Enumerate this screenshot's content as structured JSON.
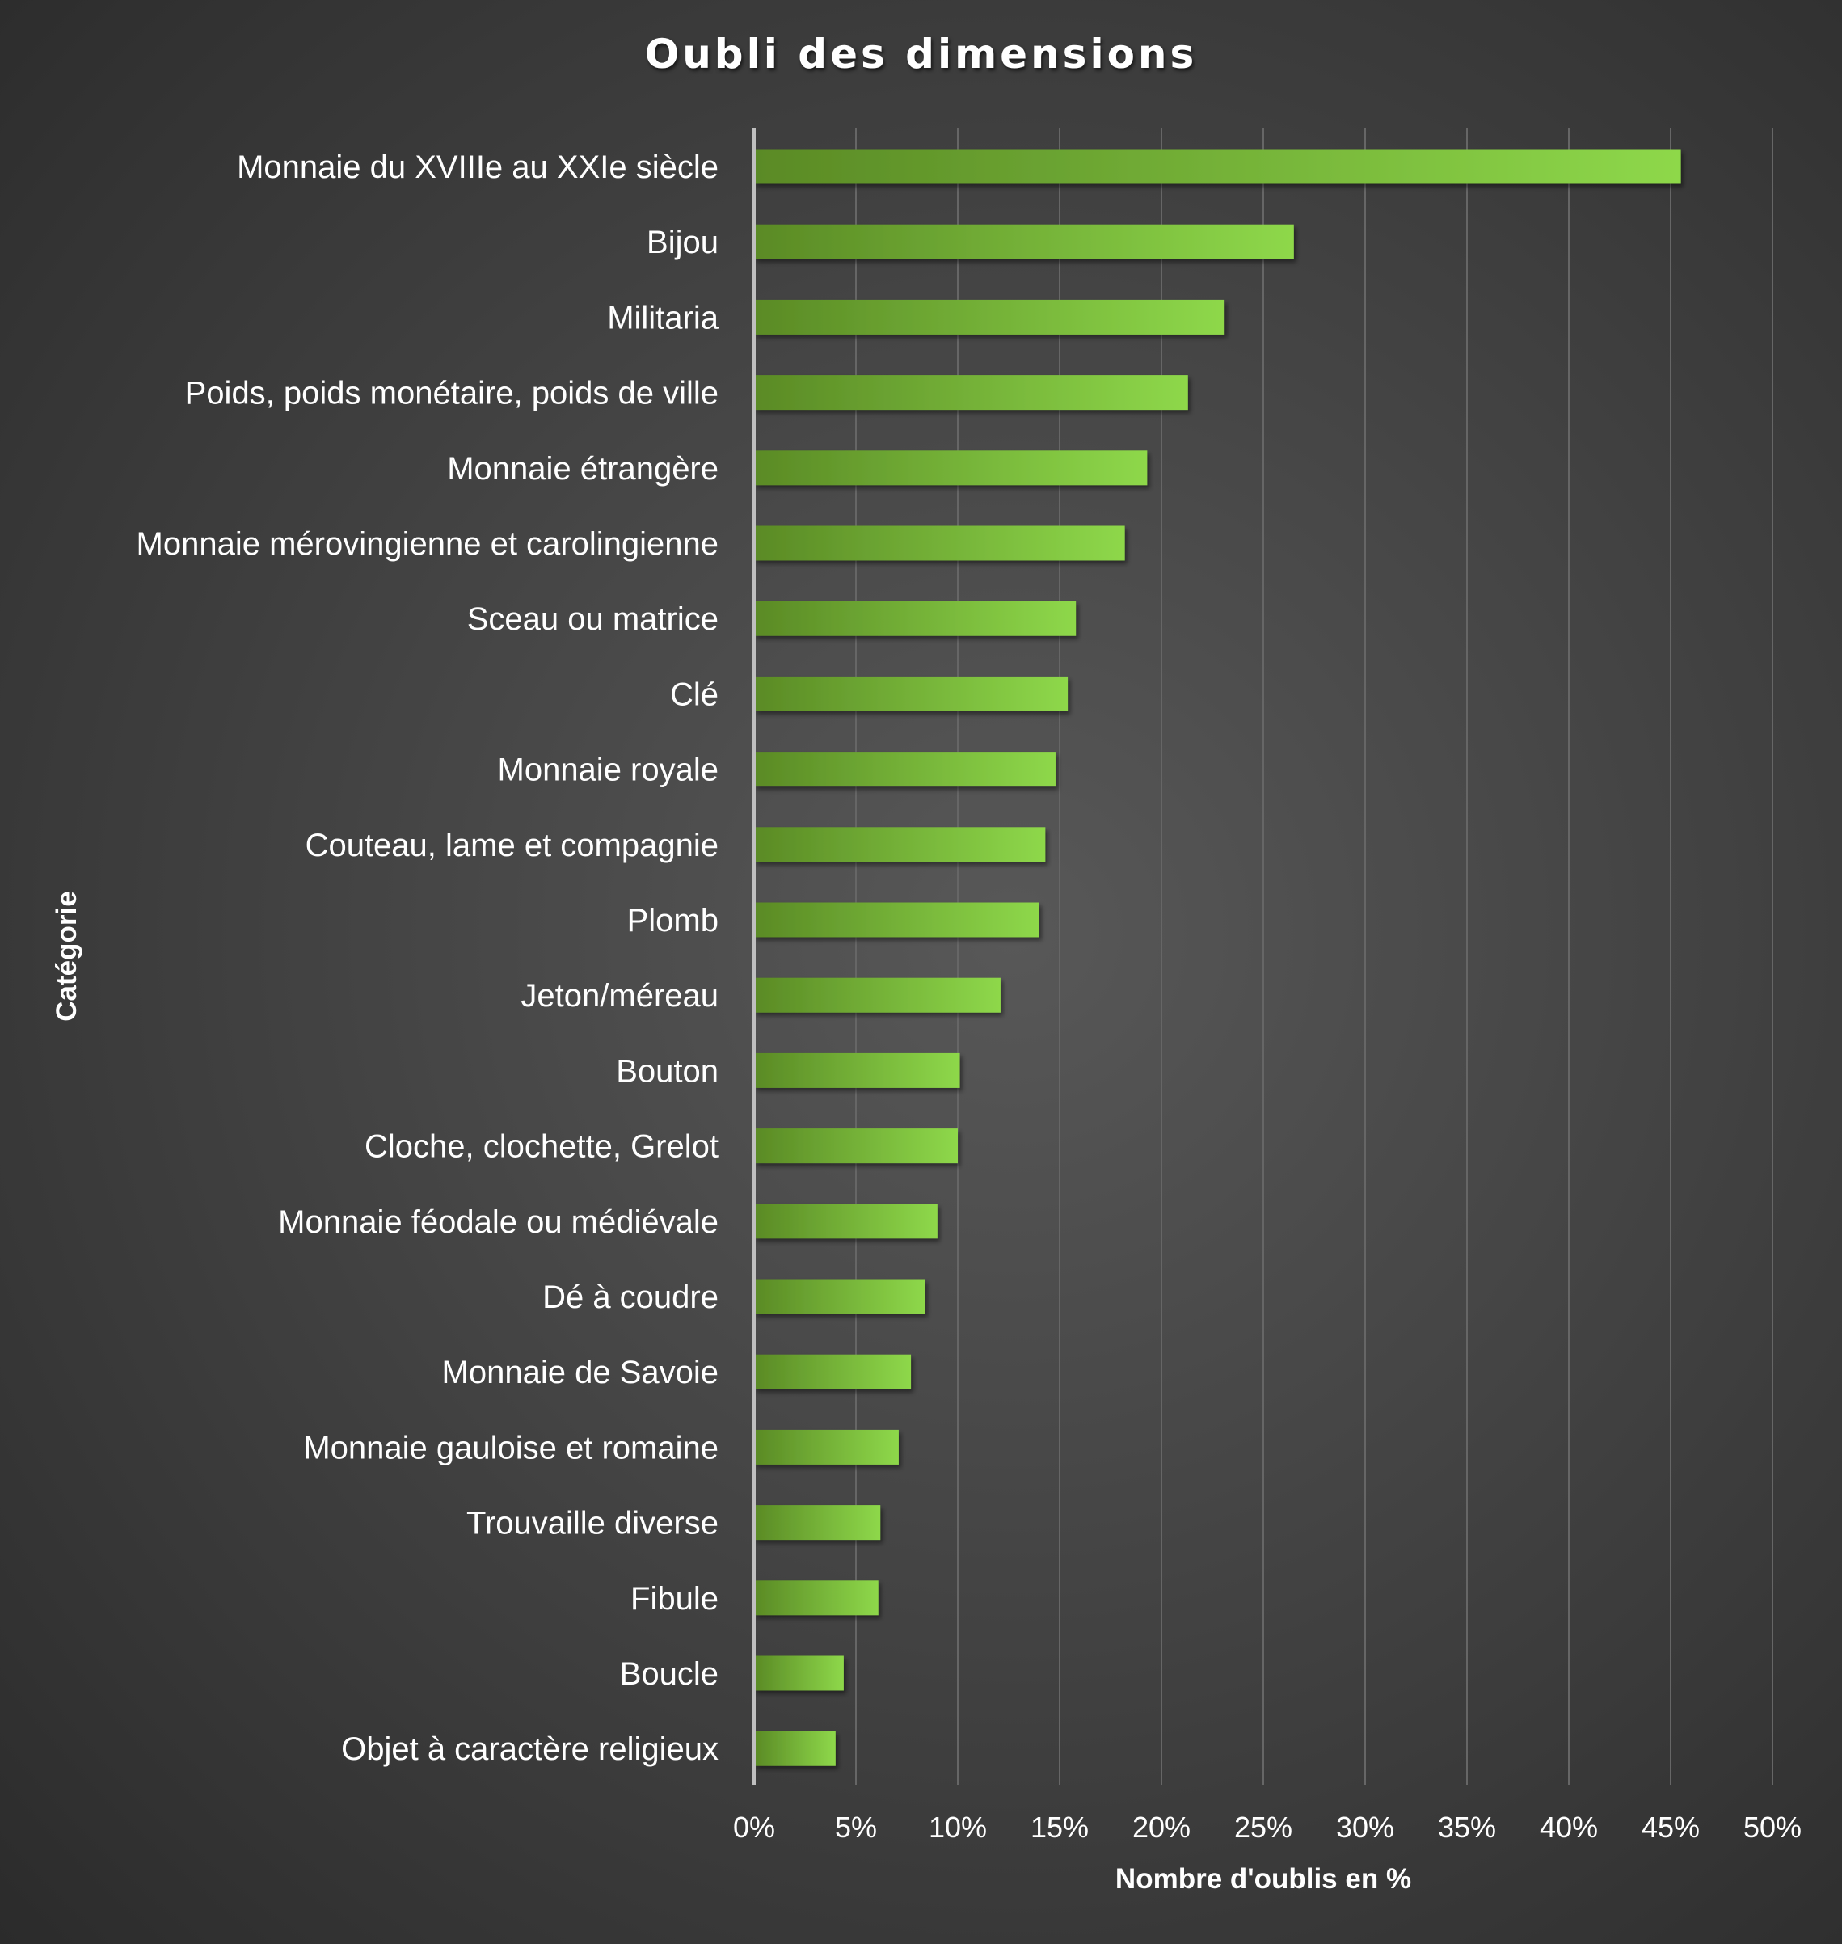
{
  "chart_data": {
    "type": "bar",
    "orientation": "horizontal",
    "title": "Oubli des dimensions",
    "xlabel": "Nombre d'oublis en %",
    "ylabel": "Catégorie",
    "xlim": [
      0,
      50
    ],
    "xticks": [
      0,
      5,
      10,
      15,
      20,
      25,
      30,
      35,
      40,
      45,
      50
    ],
    "xtick_labels": [
      "0%",
      "5%",
      "10%",
      "15%",
      "20%",
      "25%",
      "30%",
      "35%",
      "40%",
      "45%",
      "50%"
    ],
    "grid": "vertical",
    "categories": [
      "Monnaie du XVIIIe au XXIe siècle",
      "Bijou",
      "Militaria",
      "Poids, poids monétaire, poids de ville",
      "Monnaie étrangère",
      "Monnaie mérovingienne et carolingienne",
      "Sceau ou matrice",
      "Clé",
      "Monnaie royale",
      "Couteau, lame et compagnie",
      "Plomb",
      "Jeton/méreau",
      "Bouton",
      "Cloche, clochette, Grelot",
      "Monnaie féodale ou médiévale",
      "Dé à coudre",
      "Monnaie de Savoie",
      "Monnaie gauloise et romaine",
      "Trouvaille diverse",
      "Fibule",
      "Boucle",
      "Objet à caractère religieux"
    ],
    "values": [
      45.5,
      26.5,
      23.1,
      21.3,
      19.3,
      18.2,
      15.8,
      15.4,
      14.8,
      14.3,
      14.0,
      12.1,
      10.1,
      10.0,
      9.0,
      8.4,
      7.7,
      7.1,
      6.2,
      6.1,
      4.4,
      4.0
    ],
    "colors": {
      "bar_start": "#5a8a25",
      "bar_end": "#8ed84a",
      "grid": "#666666",
      "axis": "#bfbfbf"
    }
  }
}
